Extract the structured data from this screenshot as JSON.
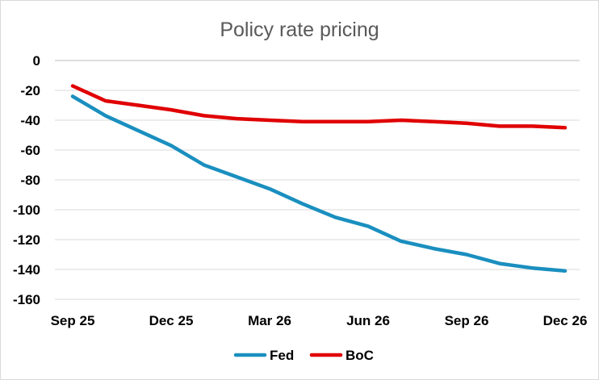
{
  "chart_data": {
    "type": "line",
    "title": "Policy rate pricing",
    "xlabel": "",
    "ylabel": "",
    "ylim": [
      -160,
      0
    ],
    "y_ticks": [
      0,
      -20,
      -40,
      -60,
      -80,
      -100,
      -120,
      -140,
      -160
    ],
    "x_tick_labels": [
      "Sep 25",
      "Dec 25",
      "Mar 26",
      "Jun 26",
      "Sep 26",
      "Dec 26"
    ],
    "x": [
      "Sep 25",
      "Oct 25",
      "Nov 25",
      "Dec 25",
      "Jan 26",
      "Feb 26",
      "Mar 26",
      "Apr 26",
      "May 26",
      "Jun 26",
      "Jul 26",
      "Aug 26",
      "Sep 26",
      "Oct 26",
      "Nov 26",
      "Dec 26"
    ],
    "grid": true,
    "legend_position": "bottom",
    "series": [
      {
        "name": "Fed",
        "color": "#1a8fbf",
        "values": [
          -24,
          -37,
          -47,
          -57,
          -70,
          -78,
          -86,
          -96,
          -105,
          -111,
          -121,
          -126,
          -130,
          -136,
          -139,
          -141
        ]
      },
      {
        "name": "BoC",
        "color": "#e00000",
        "values": [
          -17,
          -27,
          -30,
          -33,
          -37,
          -39,
          -40,
          -41,
          -41,
          -41,
          -40,
          -41,
          -42,
          -44,
          -44,
          -45
        ]
      }
    ]
  }
}
